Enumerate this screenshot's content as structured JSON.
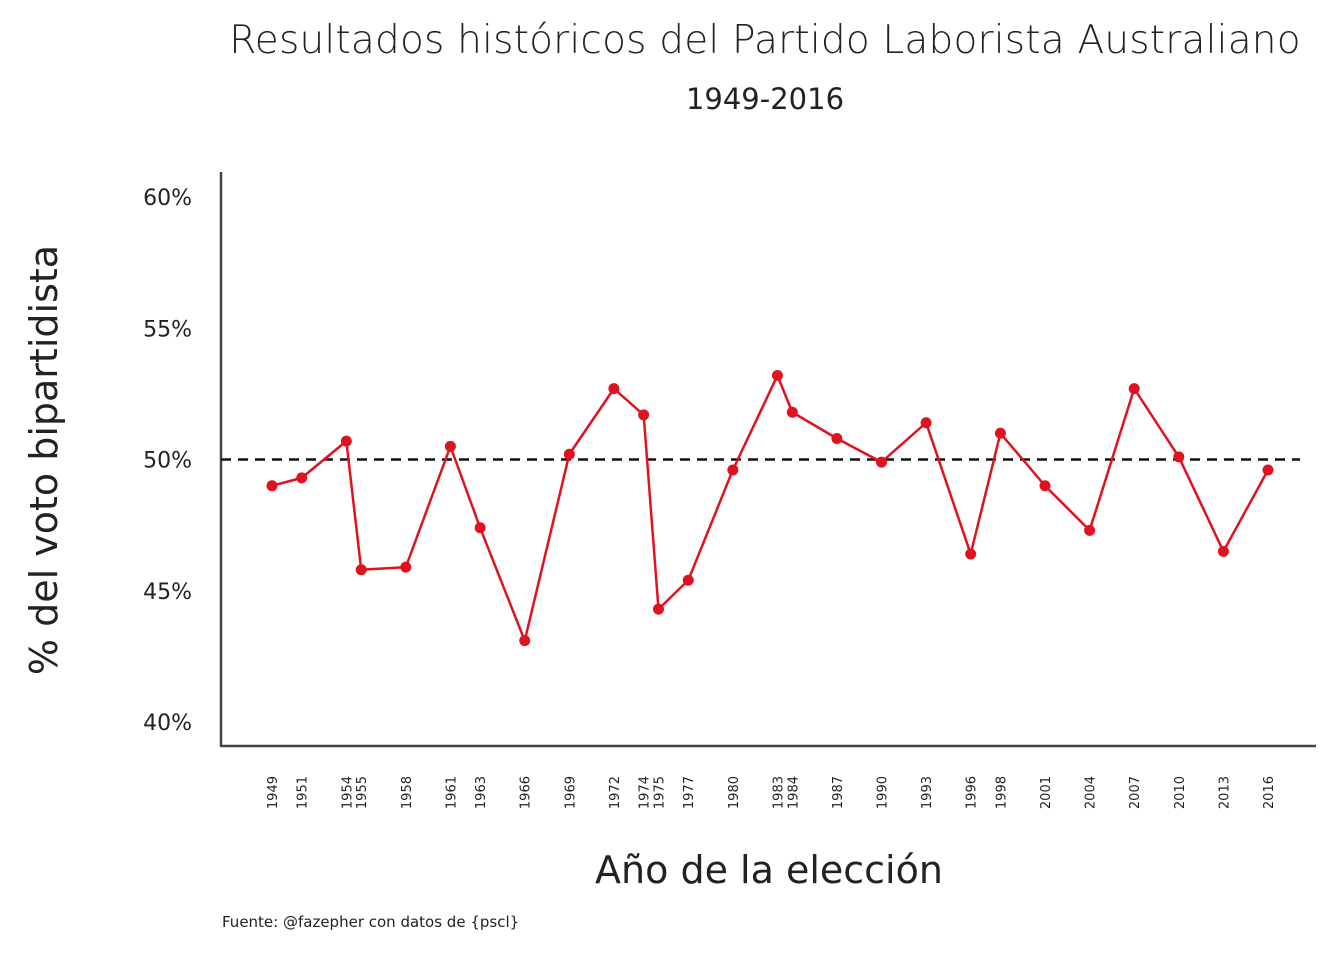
{
  "chart_data": {
    "type": "line",
    "title": "Resultados históricos del Partido Laborista Australiano",
    "subtitle": "1949-2016",
    "xlabel": "Año de la elección",
    "ylabel": "% del voto bipartidista",
    "caption": "Fuente: @fazepher con datos de {pscl}",
    "ylim": [
      40,
      60
    ],
    "yticks": [
      40,
      45,
      50,
      55,
      60
    ],
    "ytick_labels": [
      "40%",
      "45%",
      "50%",
      "55%",
      "60%"
    ],
    "reference_line": 50,
    "grid": false,
    "line_color": "#e0121f",
    "x": [
      1949,
      1951,
      1954,
      1955,
      1958,
      1961,
      1963,
      1966,
      1969,
      1972,
      1974,
      1975,
      1977,
      1980,
      1983,
      1984,
      1987,
      1990,
      1993,
      1996,
      1998,
      2001,
      2004,
      2007,
      2010,
      2013,
      2016
    ],
    "values": [
      49.0,
      49.3,
      50.7,
      45.8,
      45.9,
      50.5,
      47.4,
      43.1,
      50.2,
      52.7,
      51.7,
      44.3,
      45.4,
      49.6,
      53.2,
      51.8,
      50.8,
      49.9,
      51.4,
      46.4,
      51.0,
      49.0,
      47.3,
      52.7,
      50.1,
      46.5,
      49.6
    ]
  }
}
